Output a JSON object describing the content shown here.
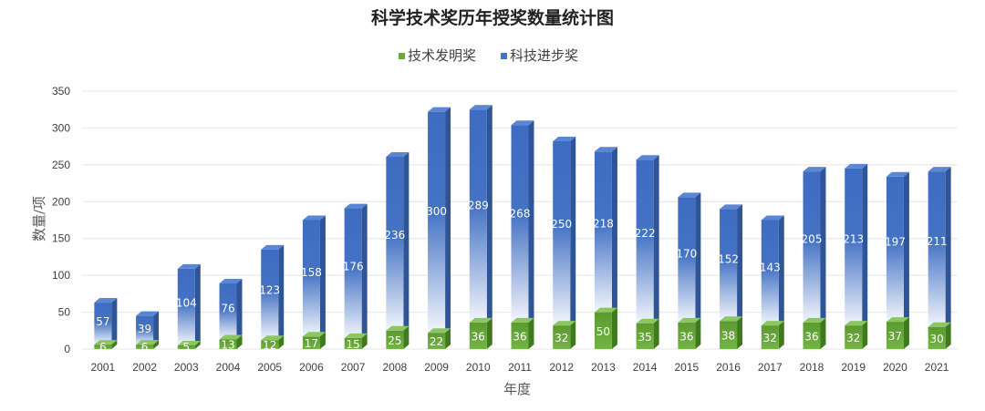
{
  "chart_data": {
    "type": "bar",
    "stacked": true,
    "three_d": true,
    "title": "科学技术奖历年授奖数量统计图",
    "xlabel": "年度",
    "ylabel": "数量/项",
    "ylim": [
      0,
      350
    ],
    "yticks": [
      0,
      50,
      100,
      150,
      200,
      250,
      300,
      350
    ],
    "grid": true,
    "legend_position": "top",
    "categories": [
      "2001",
      "2002",
      "2003",
      "2004",
      "2005",
      "2006",
      "2007",
      "2008",
      "2009",
      "2010",
      "2011",
      "2012",
      "2013",
      "2014",
      "2015",
      "2016",
      "2017",
      "2018",
      "2019",
      "2020",
      "2021"
    ],
    "series": [
      {
        "name": "技术发明奖",
        "color": "#6aaa3a",
        "values": [
          6,
          6,
          5,
          13,
          12,
          17,
          15,
          25,
          22,
          36,
          36,
          32,
          50,
          35,
          36,
          38,
          32,
          36,
          32,
          37,
          30
        ]
      },
      {
        "name": "科技进步奖",
        "color": "#4472c4",
        "values": [
          57,
          39,
          104,
          76,
          123,
          158,
          176,
          236,
          300,
          289,
          268,
          250,
          218,
          222,
          170,
          152,
          143,
          205,
          213,
          197,
          211
        ]
      }
    ]
  }
}
